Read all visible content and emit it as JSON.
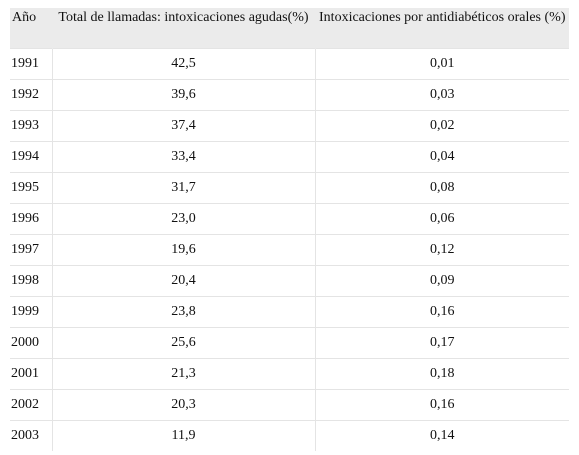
{
  "table": {
    "headers": {
      "year": "Año",
      "total": "Total de llamadas: intoxicaciones agudas(%)",
      "antidiabetic": "Intoxicaciones por antidiabéticos orales (%)"
    },
    "rows": [
      {
        "year": "1991",
        "total": "42,5",
        "antidiabetic": "0,01"
      },
      {
        "year": "1992",
        "total": "39,6",
        "antidiabetic": "0,03"
      },
      {
        "year": "1993",
        "total": "37,4",
        "antidiabetic": "0,02"
      },
      {
        "year": "1994",
        "total": "33,4",
        "antidiabetic": "0,04"
      },
      {
        "year": "1995",
        "total": "31,7",
        "antidiabetic": "0,08"
      },
      {
        "year": "1996",
        "total": "23,0",
        "antidiabetic": "0,06"
      },
      {
        "year": "1997",
        "total": "19,6",
        "antidiabetic": "0,12"
      },
      {
        "year": "1998",
        "total": "20,4",
        "antidiabetic": "0,09"
      },
      {
        "year": "1999",
        "total": "23,8",
        "antidiabetic": "0,16"
      },
      {
        "year": "2000",
        "total": "25,6",
        "antidiabetic": "0,17"
      },
      {
        "year": "2001",
        "total": "21,3",
        "antidiabetic": "0,18"
      },
      {
        "year": "2002",
        "total": "20,3",
        "antidiabetic": "0,16"
      },
      {
        "year": "2003",
        "total": "11,9",
        "antidiabetic": "0,14"
      }
    ]
  }
}
